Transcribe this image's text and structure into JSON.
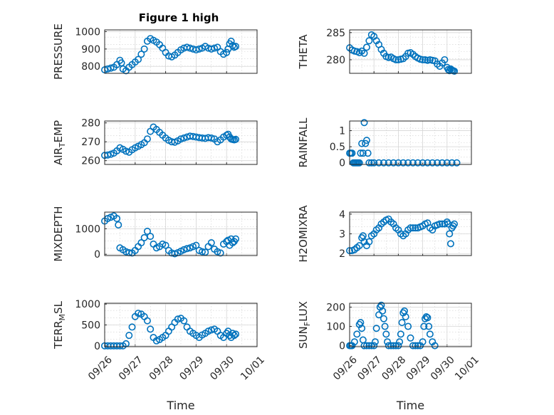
{
  "figure_title": "Figure 1 high",
  "chart_data": [
    {
      "type": "scatter",
      "ylabel": "PRESSURE",
      "ylim": [
        760,
        1010
      ],
      "yticks": [
        800,
        900,
        1000
      ],
      "xlim": [
        0,
        5
      ],
      "xticklabels": [],
      "xlabel": "",
      "title": "Figure 1 high",
      "x": [
        0,
        0.1,
        0.2,
        0.3,
        0.4,
        0.5,
        0.55,
        0.6,
        0.7,
        0.8,
        0.9,
        1,
        1.1,
        1.2,
        1.3,
        1.4,
        1.5,
        1.6,
        1.7,
        1.8,
        1.9,
        2,
        2.1,
        2.2,
        2.3,
        2.4,
        2.5,
        2.6,
        2.7,
        2.8,
        2.9,
        3,
        3.1,
        3.2,
        3.3,
        3.4,
        3.5,
        3.6,
        3.7,
        3.8,
        3.9,
        4,
        4.05,
        4.1,
        4.15,
        4.2,
        4.25,
        4.3
      ],
      "y": [
        780,
        785,
        790,
        795,
        810,
        835,
        820,
        785,
        775,
        795,
        810,
        825,
        840,
        870,
        900,
        945,
        960,
        950,
        940,
        925,
        905,
        880,
        860,
        855,
        865,
        880,
        895,
        905,
        910,
        905,
        900,
        895,
        900,
        905,
        915,
        905,
        900,
        905,
        910,
        885,
        870,
        880,
        900,
        930,
        945,
        920,
        910,
        915
      ]
    },
    {
      "type": "scatter",
      "ylabel": "THETA",
      "ylim": [
        277.5,
        285.5
      ],
      "yticks": [
        280,
        285
      ],
      "xlim": [
        0,
        5
      ],
      "xticklabels": [],
      "xlabel": "",
      "x": [
        0,
        0.1,
        0.2,
        0.3,
        0.4,
        0.5,
        0.6,
        0.7,
        0.8,
        0.9,
        1,
        1.1,
        1.2,
        1.3,
        1.4,
        1.5,
        1.6,
        1.7,
        1.8,
        1.9,
        2,
        2.1,
        2.2,
        2.3,
        2.4,
        2.5,
        2.6,
        2.7,
        2.8,
        2.9,
        3,
        3.1,
        3.2,
        3.3,
        3.4,
        3.5,
        3.6,
        3.7,
        3.8,
        3.9,
        4,
        4.05,
        4.1,
        4.15,
        4.2,
        4.25,
        4.3
      ],
      "y": [
        282.2,
        281.8,
        281.6,
        281.5,
        281.3,
        281.6,
        281.2,
        282.3,
        283.5,
        284.6,
        284.3,
        283.5,
        282.8,
        281.9,
        281.2,
        280.6,
        280.4,
        280.5,
        280.2,
        280.0,
        280.0,
        280.1,
        280.2,
        280.6,
        281.2,
        281.3,
        281.0,
        280.6,
        280.3,
        280.1,
        280.0,
        280.0,
        279.9,
        280.0,
        279.9,
        279.8,
        279.2,
        278.8,
        279.4,
        280.0,
        278.6,
        278.2,
        278.0,
        278.3,
        278.1,
        278.0,
        277.9
      ]
    },
    {
      "type": "scatter",
      "ylabel": "AIR_TEMP",
      "ylim": [
        258,
        281
      ],
      "yticks": [
        260,
        270,
        280
      ],
      "xlim": [
        0,
        5
      ],
      "xticklabels": [],
      "xlabel": "",
      "x": [
        0,
        0.1,
        0.2,
        0.3,
        0.4,
        0.5,
        0.6,
        0.7,
        0.8,
        0.9,
        1,
        1.1,
        1.2,
        1.3,
        1.4,
        1.5,
        1.6,
        1.7,
        1.8,
        1.9,
        2,
        2.1,
        2.2,
        2.3,
        2.4,
        2.5,
        2.6,
        2.7,
        2.8,
        2.9,
        3,
        3.1,
        3.2,
        3.3,
        3.4,
        3.5,
        3.6,
        3.7,
        3.8,
        3.9,
        4,
        4.05,
        4.1,
        4.15,
        4.2,
        4.25,
        4.3
      ],
      "y": [
        262.8,
        263.0,
        263.4,
        264.0,
        265.2,
        266.8,
        266.0,
        265.0,
        264.5,
        265.8,
        266.8,
        267.6,
        268.5,
        269.5,
        271.5,
        275.5,
        277.8,
        276.5,
        275.0,
        273.5,
        272.0,
        270.8,
        270.0,
        269.8,
        270.5,
        271.5,
        272.0,
        272.5,
        273.0,
        272.8,
        272.5,
        272.2,
        272.0,
        271.8,
        272.2,
        272.0,
        271.5,
        270.0,
        271.0,
        272.5,
        273.5,
        274.0,
        272.5,
        271.5,
        271.2,
        271.0,
        271.3
      ]
    },
    {
      "type": "scatter",
      "ylabel": "RAINFALL",
      "ylim": [
        -0.05,
        1.3
      ],
      "yticks": [
        0,
        0.5,
        1
      ],
      "yticklabels": [
        "0",
        "0.5",
        "1"
      ],
      "xlim": [
        0,
        5
      ],
      "xticklabels": [],
      "xlabel": "",
      "x": [
        0,
        0.05,
        0.1,
        0.15,
        0.2,
        0.25,
        0.3,
        0.35,
        0.4,
        0.45,
        0.5,
        0.55,
        0.6,
        0.65,
        0.7,
        0.75,
        0.8,
        0.9,
        1,
        1.2,
        1.4,
        1.6,
        1.8,
        2,
        2.2,
        2.4,
        2.6,
        2.8,
        3,
        3.2,
        3.4,
        3.6,
        3.8,
        4,
        4.2,
        4.4
      ],
      "y": [
        0.3,
        0.3,
        0.3,
        0,
        0,
        0,
        0,
        0,
        0,
        0.3,
        0.6,
        0.3,
        1.25,
        0.6,
        0.7,
        0.3,
        0,
        0,
        0,
        0,
        0,
        0,
        0,
        0,
        0,
        0,
        0,
        0,
        0,
        0,
        0,
        0,
        0,
        0,
        0,
        0
      ]
    },
    {
      "type": "scatter",
      "ylabel": "MIXDEPTH",
      "ylim": [
        -50,
        1650
      ],
      "yticks": [
        0,
        1000
      ],
      "xlim": [
        0,
        5
      ],
      "xticklabels": [],
      "xlabel": "",
      "x": [
        0,
        0.1,
        0.2,
        0.3,
        0.4,
        0.45,
        0.5,
        0.6,
        0.7,
        0.8,
        0.9,
        1,
        1.1,
        1.2,
        1.3,
        1.4,
        1.5,
        1.6,
        1.7,
        1.8,
        1.9,
        2,
        2.1,
        2.2,
        2.3,
        2.4,
        2.5,
        2.6,
        2.7,
        2.8,
        2.9,
        3,
        3.1,
        3.2,
        3.3,
        3.4,
        3.5,
        3.6,
        3.7,
        3.8,
        3.9,
        4,
        4.05,
        4.1,
        4.15,
        4.2,
        4.25,
        4.3
      ],
      "y": [
        1300,
        1400,
        1450,
        1500,
        1400,
        1150,
        250,
        180,
        100,
        60,
        50,
        150,
        300,
        450,
        650,
        900,
        700,
        400,
        250,
        300,
        400,
        350,
        150,
        50,
        20,
        60,
        120,
        180,
        220,
        250,
        300,
        350,
        150,
        100,
        80,
        300,
        450,
        200,
        100,
        50,
        400,
        500,
        550,
        350,
        600,
        450,
        500,
        600
      ]
    },
    {
      "type": "scatter",
      "ylabel": "H2OMIXRA",
      "ylim": [
        1.9,
        4.1
      ],
      "yticks": [
        2,
        3,
        4
      ],
      "xlim": [
        0,
        5
      ],
      "xticklabels": [],
      "xlabel": "",
      "x": [
        0,
        0.1,
        0.2,
        0.3,
        0.4,
        0.5,
        0.55,
        0.6,
        0.7,
        0.8,
        0.9,
        1,
        1.1,
        1.2,
        1.3,
        1.4,
        1.5,
        1.6,
        1.7,
        1.8,
        1.9,
        2,
        2.1,
        2.2,
        2.3,
        2.4,
        2.5,
        2.6,
        2.7,
        2.8,
        2.9,
        3,
        3.1,
        3.2,
        3.3,
        3.4,
        3.5,
        3.6,
        3.7,
        3.8,
        3.9,
        4,
        4.05,
        4.1,
        4.15,
        4.2,
        4.25,
        4.3
      ],
      "y": [
        2.15,
        2.15,
        2.2,
        2.3,
        2.4,
        2.8,
        2.9,
        2.6,
        2.4,
        2.6,
        2.9,
        3.0,
        3.2,
        3.3,
        3.5,
        3.6,
        3.7,
        3.75,
        3.6,
        3.5,
        3.3,
        3.2,
        3.0,
        2.9,
        3.0,
        3.2,
        3.3,
        3.3,
        3.3,
        3.3,
        3.35,
        3.4,
        3.5,
        3.55,
        3.3,
        3.2,
        3.4,
        3.45,
        3.5,
        3.5,
        3.5,
        3.6,
        3.5,
        3.0,
        2.5,
        3.3,
        3.4,
        3.5
      ]
    },
    {
      "type": "scatter",
      "ylabel": "TERR_MSL",
      "ylim": [
        -20,
        1020
      ],
      "yticks": [
        0,
        500,
        1000
      ],
      "xlim": [
        0,
        5
      ],
      "xticklabels": [
        "09/26",
        "09/27",
        "09/28",
        "09/29",
        "09/30",
        "10/01"
      ],
      "xlabel": "Time",
      "x": [
        0,
        0.1,
        0.2,
        0.3,
        0.4,
        0.5,
        0.6,
        0.7,
        0.8,
        0.9,
        1,
        1.1,
        1.2,
        1.3,
        1.4,
        1.5,
        1.6,
        1.7,
        1.8,
        1.9,
        2,
        2.1,
        2.2,
        2.3,
        2.4,
        2.5,
        2.6,
        2.7,
        2.8,
        2.9,
        3,
        3.1,
        3.2,
        3.3,
        3.4,
        3.5,
        3.6,
        3.7,
        3.8,
        3.9,
        4,
        4.05,
        4.1,
        4.15,
        4.2,
        4.25,
        4.3
      ],
      "y": [
        0,
        0,
        0,
        0,
        0,
        0,
        0,
        50,
        250,
        450,
        700,
        780,
        760,
        700,
        600,
        400,
        200,
        120,
        150,
        200,
        250,
        350,
        450,
        560,
        640,
        660,
        600,
        450,
        350,
        300,
        250,
        200,
        260,
        300,
        350,
        380,
        400,
        350,
        250,
        200,
        300,
        350,
        250,
        200,
        300,
        250,
        280
      ]
    },
    {
      "type": "scatter",
      "ylabel": "SUN_FLUX",
      "ylim": [
        -5,
        220
      ],
      "yticks": [
        0,
        100,
        200
      ],
      "xlim": [
        0,
        5
      ],
      "xticklabels": [
        "09/26",
        "09/27",
        "09/28",
        "09/29",
        "09/30",
        "10/01"
      ],
      "xlabel": "Time",
      "x": [
        0,
        0.05,
        0.1,
        0.2,
        0.3,
        0.4,
        0.45,
        0.5,
        0.55,
        0.6,
        0.7,
        0.8,
        0.9,
        1,
        1.05,
        1.1,
        1.2,
        1.25,
        1.3,
        1.35,
        1.4,
        1.45,
        1.5,
        1.55,
        1.6,
        1.7,
        1.8,
        1.9,
        2,
        2.05,
        2.1,
        2.15,
        2.2,
        2.25,
        2.3,
        2.4,
        2.5,
        2.6,
        2.7,
        2.8,
        2.9,
        3,
        3.05,
        3.1,
        3.15,
        3.2,
        3.25,
        3.3,
        3.4,
        3.5
      ],
      "y": [
        0,
        0,
        0,
        20,
        60,
        110,
        120,
        90,
        30,
        0,
        0,
        0,
        0,
        0,
        20,
        90,
        160,
        200,
        210,
        180,
        140,
        100,
        60,
        20,
        0,
        0,
        0,
        0,
        0,
        20,
        60,
        120,
        170,
        180,
        150,
        100,
        40,
        0,
        0,
        0,
        0,
        20,
        100,
        140,
        150,
        145,
        100,
        60,
        20,
        0
      ]
    }
  ]
}
